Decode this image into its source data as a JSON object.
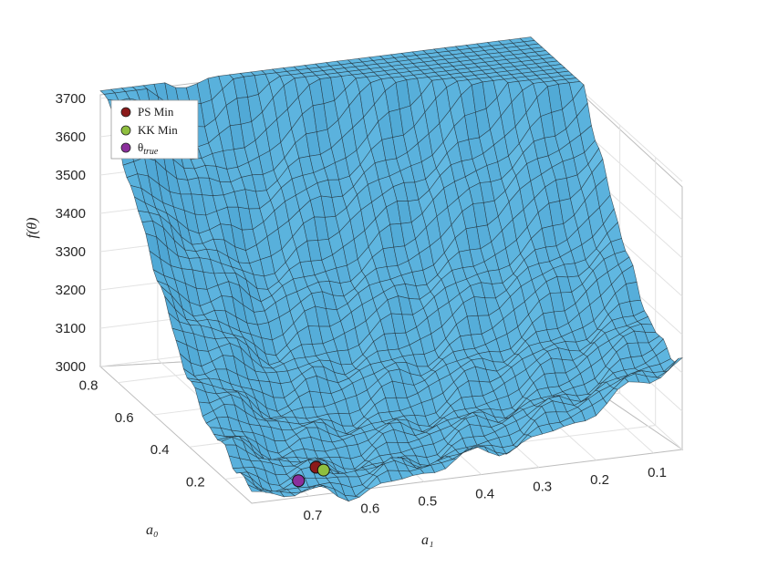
{
  "chart_data": {
    "type": "surface",
    "zlabel": "f(θ)",
    "xlabel": "a₁",
    "ylabel": "a₀",
    "z_ticks": [
      "3000",
      "3100",
      "3200",
      "3300",
      "3400",
      "3500",
      "3600",
      "3700"
    ],
    "z_tick_values": [
      3000,
      3100,
      3200,
      3300,
      3400,
      3500,
      3600,
      3700
    ],
    "a1_ticks": [
      "0.7",
      "0.6",
      "0.5",
      "0.4",
      "0.3",
      "0.2",
      "0.1"
    ],
    "a1_tick_values": [
      0.7,
      0.6,
      0.5,
      0.4,
      0.3,
      0.2,
      0.1
    ],
    "a0_ticks": [
      "0.8",
      "0.6",
      "0.4",
      "0.2"
    ],
    "a0_tick_values": [
      0.8,
      0.6,
      0.4,
      0.2
    ],
    "zlim": [
      3000,
      3700
    ],
    "a1lim": [
      0.05,
      0.8
    ],
    "a0lim": [
      0.05,
      0.9
    ],
    "grid": true,
    "legend_position": "top-left",
    "surface_color": "#5fb6e0",
    "points": [
      {
        "name": "PS Min",
        "a1": 0.66,
        "a0": 0.14,
        "z": 3030,
        "color": "#8b1a1a"
      },
      {
        "name": "KK Min",
        "a1": 0.65,
        "a0": 0.13,
        "z": 3025,
        "color": "#8fbf3f"
      },
      {
        "name": "θtrue",
        "a1": 0.7,
        "a0": 0.11,
        "z": 3015,
        "color": "#8b2f9c"
      }
    ],
    "legend": [
      {
        "label": "PS Min",
        "color": "#8b1a1a"
      },
      {
        "label": "KK Min",
        "color": "#8fbf3f"
      },
      {
        "label": "θ",
        "sub": "true",
        "color": "#8b2f9c"
      }
    ]
  }
}
